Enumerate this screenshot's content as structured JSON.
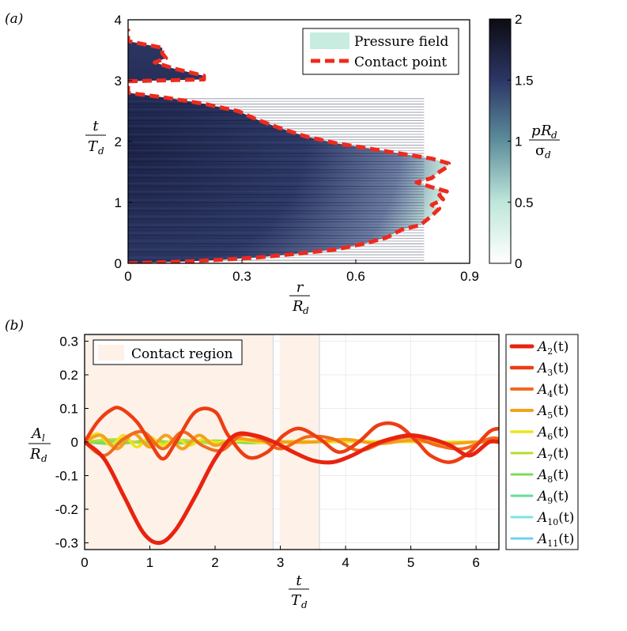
{
  "panel_labels": {
    "a": "(a)",
    "b": "(b)"
  },
  "colors": {
    "pressure_legend": "#c8ece0",
    "contact_line": "#ee2a1e",
    "contact_region": "#fdf1e8",
    "series": [
      "#e8230f",
      "#ee3d13",
      "#f06a1e",
      "#f4a21c",
      "#eee31c",
      "#b4de2e",
      "#7bdc55",
      "#66dd99",
      "#7ee3e6",
      "#6cd0f2"
    ]
  },
  "chart_data": [
    {
      "type": "heatmap",
      "panel": "(a)",
      "title": "",
      "xlabel": {
        "num": "r",
        "den": "R",
        "den_sub": "d"
      },
      "ylabel": {
        "num": "t",
        "den": "T",
        "den_sub": "d"
      },
      "x_ticks": [
        "0",
        "0.3",
        "0.6",
        "0.9"
      ],
      "y_ticks": [
        "0",
        "1",
        "2",
        "3",
        "4"
      ],
      "xlim": [
        0,
        0.9
      ],
      "ylim": [
        0,
        4
      ],
      "colorbar": {
        "label": {
          "num_p": "p",
          "num_R": "R",
          "num_sub": "d",
          "den": "σ",
          "den_sub": "d"
        },
        "ticks": [
          "0",
          "0.5",
          "1",
          "1.5",
          "2"
        ],
        "range": [
          0,
          2
        ]
      },
      "legend": {
        "position": "top-right",
        "entries": [
          "Pressure field",
          "Contact point"
        ]
      },
      "contact_point": [
        [
          0.0,
          0.0
        ],
        [
          0.15,
          0.03
        ],
        [
          0.25,
          0.06
        ],
        [
          0.35,
          0.1
        ],
        [
          0.45,
          0.16
        ],
        [
          0.55,
          0.23
        ],
        [
          0.62,
          0.32
        ],
        [
          0.68,
          0.42
        ],
        [
          0.72,
          0.55
        ],
        [
          0.77,
          0.63
        ],
        [
          0.8,
          0.78
        ],
        [
          0.82,
          0.9
        ],
        [
          0.8,
          0.96
        ],
        [
          0.83,
          1.05
        ],
        [
          0.82,
          1.12
        ],
        [
          0.84,
          1.18
        ],
        [
          0.8,
          1.25
        ],
        [
          0.76,
          1.33
        ],
        [
          0.8,
          1.4
        ],
        [
          0.82,
          1.5
        ],
        [
          0.84,
          1.58
        ],
        [
          0.845,
          1.64
        ],
        [
          0.8,
          1.72
        ],
        [
          0.72,
          1.8
        ],
        [
          0.64,
          1.88
        ],
        [
          0.55,
          1.97
        ],
        [
          0.47,
          2.08
        ],
        [
          0.4,
          2.22
        ],
        [
          0.34,
          2.36
        ],
        [
          0.29,
          2.5
        ],
        [
          0.2,
          2.62
        ],
        [
          0.1,
          2.72
        ],
        [
          0.0,
          2.8
        ],
        [
          0.0,
          2.88
        ],
        [
          0.0,
          2.99
        ],
        [
          0.2,
          3.02
        ],
        [
          0.2,
          3.08
        ],
        [
          0.12,
          3.2
        ],
        [
          0.07,
          3.3
        ],
        [
          0.1,
          3.37
        ],
        [
          0.09,
          3.45
        ],
        [
          0.09,
          3.54
        ],
        [
          0.04,
          3.6
        ],
        [
          0.0,
          3.65
        ],
        [
          0.0,
          3.85
        ]
      ]
    },
    {
      "type": "line",
      "panel": "(b)",
      "title": "",
      "xlabel": {
        "num": "t",
        "den": "T",
        "den_sub": "d"
      },
      "ylabel": {
        "num": "A",
        "num_sub": "l",
        "den": "R",
        "den_sub": "d"
      },
      "x_ticks": [
        "0",
        "1",
        "2",
        "3",
        "4",
        "5",
        "6"
      ],
      "y_ticks": [
        "0.3",
        "0.2",
        "0.1",
        "0",
        "-0.1",
        "-0.2",
        "-0.3"
      ],
      "xlim": [
        0,
        6.35
      ],
      "ylim": [
        -0.32,
        0.32
      ],
      "grid": true,
      "contact_region": {
        "label": "Contact region",
        "intervals": [
          [
            0,
            2.89
          ],
          [
            2.99,
            3.6
          ]
        ]
      },
      "legend": {
        "position": "outside-right"
      },
      "series": [
        {
          "name": "A",
          "sub": "2",
          "arg": "(t)",
          "x": [
            0,
            0.3,
            0.6,
            0.9,
            1.15,
            1.4,
            1.7,
            2.0,
            2.3,
            2.6,
            2.9,
            3.2,
            3.5,
            3.8,
            4.1,
            4.4,
            4.7,
            5.0,
            5.3,
            5.6,
            5.9,
            6.2,
            6.35
          ],
          "values": [
            0,
            -0.05,
            -0.16,
            -0.27,
            -0.3,
            -0.26,
            -0.16,
            -0.05,
            0.02,
            0.02,
            0.0,
            -0.03,
            -0.055,
            -0.06,
            -0.04,
            -0.01,
            0.01,
            0.02,
            0.01,
            -0.01,
            -0.04,
            0.0,
            0.0
          ]
        },
        {
          "name": "A",
          "sub": "3",
          "arg": "(t)",
          "x": [
            0,
            0.2,
            0.4,
            0.55,
            0.8,
            1.0,
            1.2,
            1.4,
            1.7,
            2.0,
            2.2,
            2.5,
            2.8,
            3.05,
            3.3,
            3.6,
            3.9,
            4.2,
            4.5,
            4.8,
            5.1,
            5.3,
            5.6,
            5.9,
            6.2,
            6.35
          ],
          "values": [
            0,
            0.06,
            0.095,
            0.1,
            0.06,
            0.0,
            -0.05,
            0.0,
            0.09,
            0.09,
            0.02,
            -0.045,
            -0.03,
            0.02,
            0.04,
            0.01,
            -0.03,
            0.0,
            0.05,
            0.05,
            0.0,
            -0.04,
            -0.06,
            -0.03,
            0.03,
            0.04
          ]
        },
        {
          "name": "A",
          "sub": "4",
          "arg": "(t)",
          "x": [
            0,
            0.3,
            0.6,
            0.9,
            1.2,
            1.5,
            1.8,
            2.1,
            2.4,
            2.7,
            3.0,
            3.4,
            3.8,
            4.2,
            4.6,
            5.0,
            5.4,
            5.8,
            6.2,
            6.35
          ],
          "values": [
            0,
            -0.04,
            0.01,
            0.03,
            -0.02,
            0.03,
            -0.01,
            -0.025,
            0.02,
            0.01,
            -0.02,
            0.015,
            0.01,
            -0.025,
            0.0,
            0.015,
            -0.01,
            -0.02,
            0.01,
            0.01
          ]
        },
        {
          "name": "A",
          "sub": "5",
          "arg": "(t)",
          "x": [
            0,
            0.25,
            0.5,
            0.75,
            1.0,
            1.25,
            1.5,
            1.75,
            2.0,
            2.3,
            2.6,
            3.0,
            3.5,
            4.0,
            4.5,
            5.0,
            5.5,
            6.0,
            6.35
          ],
          "values": [
            0,
            0.02,
            -0.02,
            0.025,
            -0.015,
            0.02,
            -0.02,
            0.02,
            -0.01,
            0.01,
            0.005,
            0.0,
            0.0,
            0.008,
            -0.005,
            0.005,
            -0.005,
            0.0,
            0.0
          ]
        },
        {
          "name": "A",
          "sub": "6",
          "arg": "(t)",
          "x": [
            0,
            0.2,
            0.4,
            0.6,
            0.8,
            1.0,
            1.2,
            1.4,
            1.6,
            1.8,
            2.0,
            2.4,
            2.8,
            3.2,
            3.8,
            4.5,
            5.2,
            6.0,
            6.35
          ],
          "values": [
            0,
            0.025,
            -0.01,
            0.02,
            -0.015,
            0.015,
            -0.01,
            0.012,
            -0.01,
            0.008,
            0.0,
            0.004,
            -0.003,
            0.003,
            0.0,
            0.002,
            0.0,
            0.0,
            0.0
          ]
        },
        {
          "name": "A",
          "sub": "7",
          "arg": "(t)",
          "x": [
            0,
            0.5,
            1.0,
            1.5,
            2.0,
            2.5,
            3.0,
            4.0,
            5.0,
            6.35
          ],
          "values": [
            0,
            0.008,
            -0.006,
            0.006,
            -0.005,
            0.004,
            0.0,
            0.003,
            0.0,
            0.0
          ]
        },
        {
          "name": "A",
          "sub": "8",
          "arg": "(t)",
          "x": [
            0,
            0.5,
            1.0,
            1.5,
            2.0,
            2.5,
            3.0,
            4.0,
            5.0,
            6.35
          ],
          "values": [
            0,
            -0.006,
            0.005,
            -0.004,
            0.004,
            -0.003,
            0.0,
            0.002,
            0.0,
            0.0
          ]
        },
        {
          "name": "A",
          "sub": "9",
          "arg": "(t)",
          "x": [
            0,
            0.5,
            1.0,
            1.5,
            2.0,
            3.0,
            4.0,
            5.0,
            6.35
          ],
          "values": [
            0,
            0.004,
            -0.004,
            0.003,
            -0.003,
            0.002,
            0.0,
            0.001,
            0.0
          ]
        },
        {
          "name": "A",
          "sub": "10",
          "arg": "(t)",
          "x": [
            0,
            0.5,
            1.0,
            1.5,
            2.0,
            3.0,
            4.0,
            5.0,
            6.35
          ],
          "values": [
            0,
            -0.003,
            0.003,
            -0.002,
            0.002,
            -0.001,
            0.0,
            0.0,
            0.0
          ]
        },
        {
          "name": "A",
          "sub": "11",
          "arg": "(t)",
          "x": [
            0,
            0.5,
            1.0,
            1.5,
            2.0,
            3.0,
            4.0,
            5.0,
            6.35
          ],
          "values": [
            0,
            0.002,
            -0.002,
            0.001,
            -0.001,
            0.0,
            0.0,
            0.0,
            0.0
          ]
        }
      ]
    }
  ]
}
